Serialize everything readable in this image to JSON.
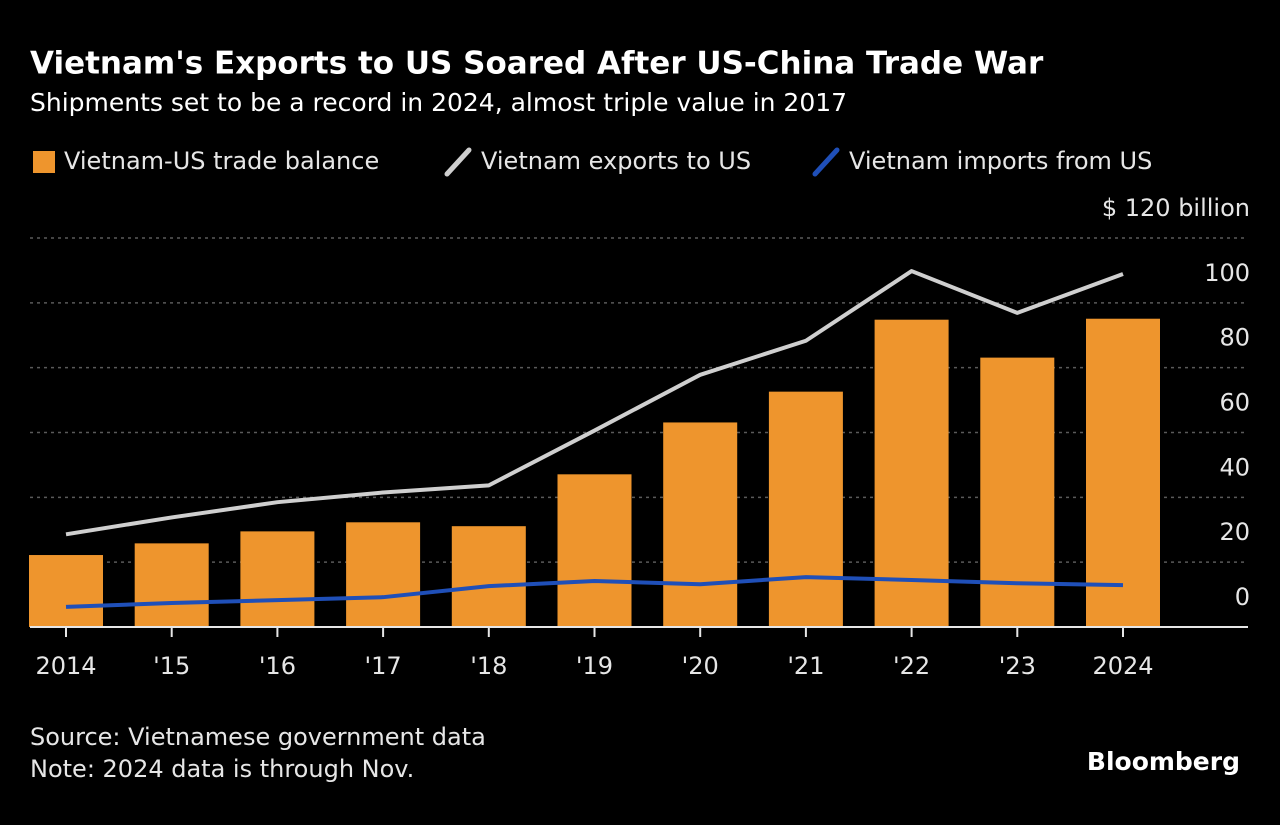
{
  "chart_data": {
    "type": "bar",
    "title": "Vietnam's Exports to US Soared After US-China Trade War",
    "subtitle": "Shipments set to be a record in 2024, almost triple value in 2017",
    "categories": [
      "2014",
      "'15",
      "'16",
      "'17",
      "'18",
      "'19",
      "'20",
      "'21",
      "'22",
      "'23",
      "2024"
    ],
    "series": [
      {
        "name": "Vietnam-US trade balance",
        "type": "bar",
        "color": "#ee952d",
        "values": [
          22.2,
          25.8,
          29.5,
          32.3,
          31.1,
          47.1,
          63.1,
          72.6,
          94.8,
          83.1,
          95.1
        ]
      },
      {
        "name": "Vietnam exports to US",
        "type": "line",
        "color": "#cfcfcf",
        "values": [
          28.6,
          33.8,
          38.5,
          41.5,
          43.7,
          60.6,
          77.8,
          88.3,
          109.8,
          96.9,
          108.9
        ]
      },
      {
        "name": "Vietnam imports from US",
        "type": "line",
        "color": "#1f4fb8",
        "values": [
          6.2,
          7.4,
          8.3,
          9.2,
          12.6,
          14.2,
          13.2,
          15.4,
          14.5,
          13.5,
          12.9
        ]
      }
    ],
    "ylim": [
      0,
      120
    ],
    "yticks": [
      0,
      20,
      40,
      60,
      80,
      100,
      {
        "value": 120,
        "label": "$ 120 billion"
      }
    ],
    "grid": true,
    "source": "Source: Vietnamese government data",
    "note": "Note: 2024 data is through Nov.",
    "brand": "Bloomberg"
  }
}
